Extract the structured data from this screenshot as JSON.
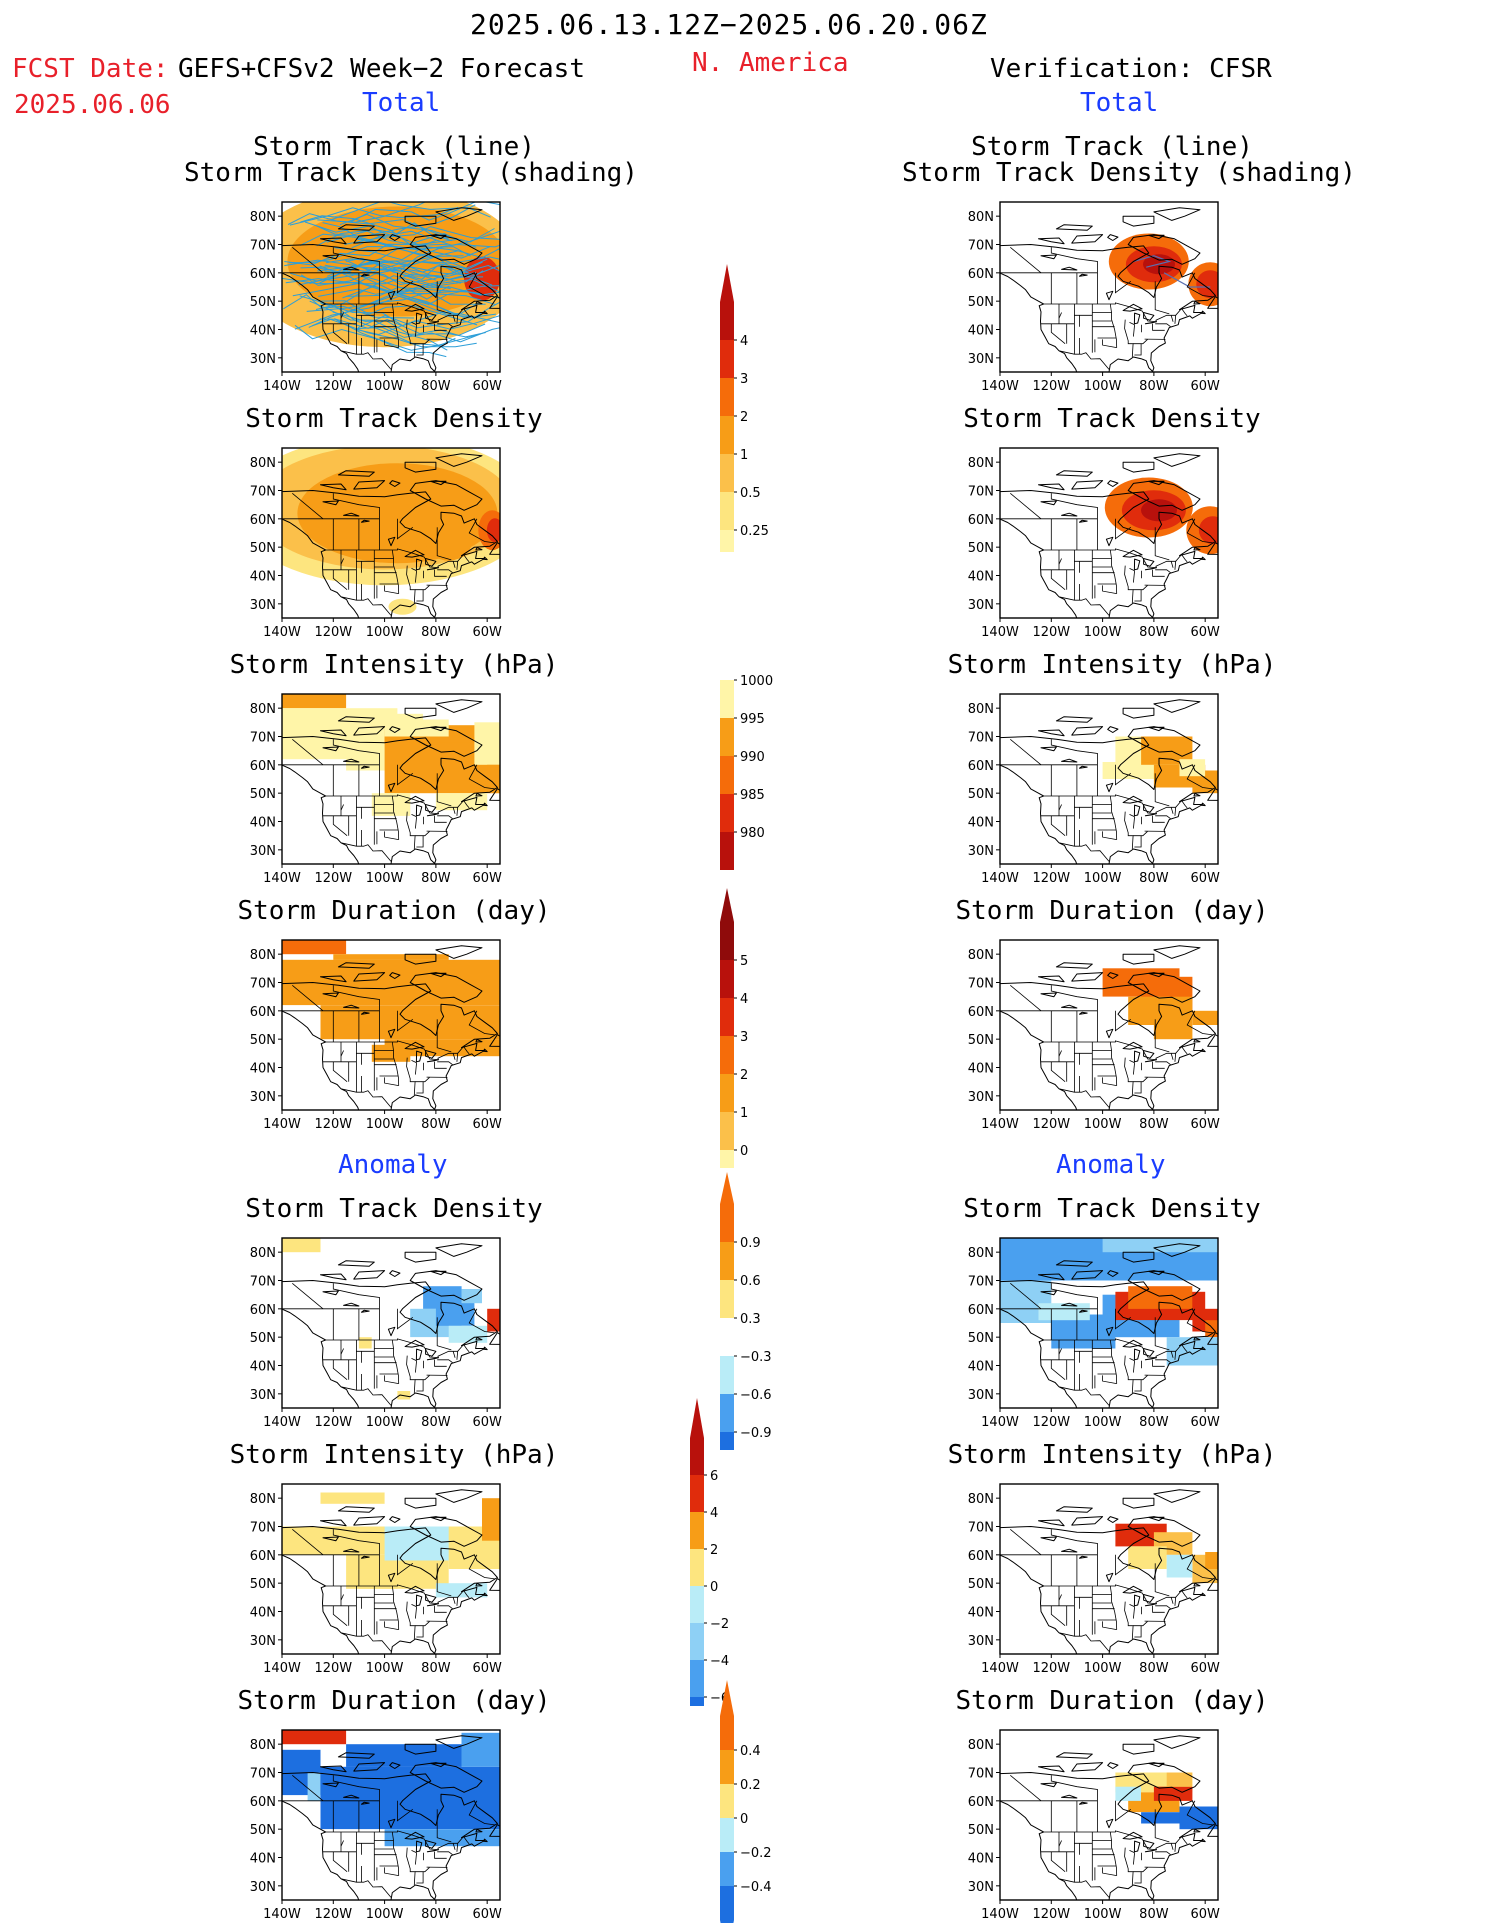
{
  "header": {
    "period": "2025.06.13.12Z−2025.06.20.06Z",
    "fcst_date_label": "FCST Date:",
    "fcst_date": "2025.06.06",
    "forecast_name": "GEFS+CFSv2 Week−2 Forecast",
    "region": "N. America",
    "verification": "Verification: CFSR"
  },
  "sections": {
    "total": "Total",
    "anomaly": "Anomaly"
  },
  "panel_titles": {
    "track_line": "Storm Track (line)",
    "track_shading": "Storm Track Density (shading)",
    "density": "Storm Track Density",
    "intensity": "Storm Intensity (hPa)",
    "duration": "Storm Duration (day)"
  },
  "axes": {
    "lat_ticks": [
      "80N",
      "70N",
      "60N",
      "50N",
      "40N",
      "30N"
    ],
    "lon_ticks": [
      "140W",
      "120W",
      "100W",
      "80W",
      "60W"
    ]
  },
  "colorbars": {
    "density_total": [
      "4",
      "3",
      "2",
      "1",
      "0.5",
      "0.25"
    ],
    "intensity_total": [
      "1000",
      "995",
      "990",
      "985",
      "980"
    ],
    "duration_total": [
      "5",
      "4",
      "3",
      "2",
      "1",
      "0"
    ],
    "density_anom": [
      "0.9",
      "0.6",
      "0.3",
      "−0.3",
      "−0.6",
      "−0.9"
    ],
    "intensity_anom": [
      "6",
      "4",
      "2",
      "0",
      "−2",
      "−4",
      "−6"
    ],
    "duration_anom": [
      "0.4",
      "0.2",
      "0",
      "−0.2",
      "−0.4"
    ]
  },
  "colors": {
    "light_yellow": "#fff5a8",
    "yellow": "#fde57f",
    "light_orange": "#fbc04a",
    "orange": "#f79d17",
    "dark_orange": "#f56c0a",
    "red": "#e02c0c",
    "dark_red": "#b8110c",
    "deep_red": "#8f0b0b",
    "light_blue": "#b9ecf7",
    "sky_blue": "#8ed0f5",
    "blue": "#4aa0ef",
    "deep_blue": "#1d6fe0",
    "track_line": "#2c9ed8"
  }
}
